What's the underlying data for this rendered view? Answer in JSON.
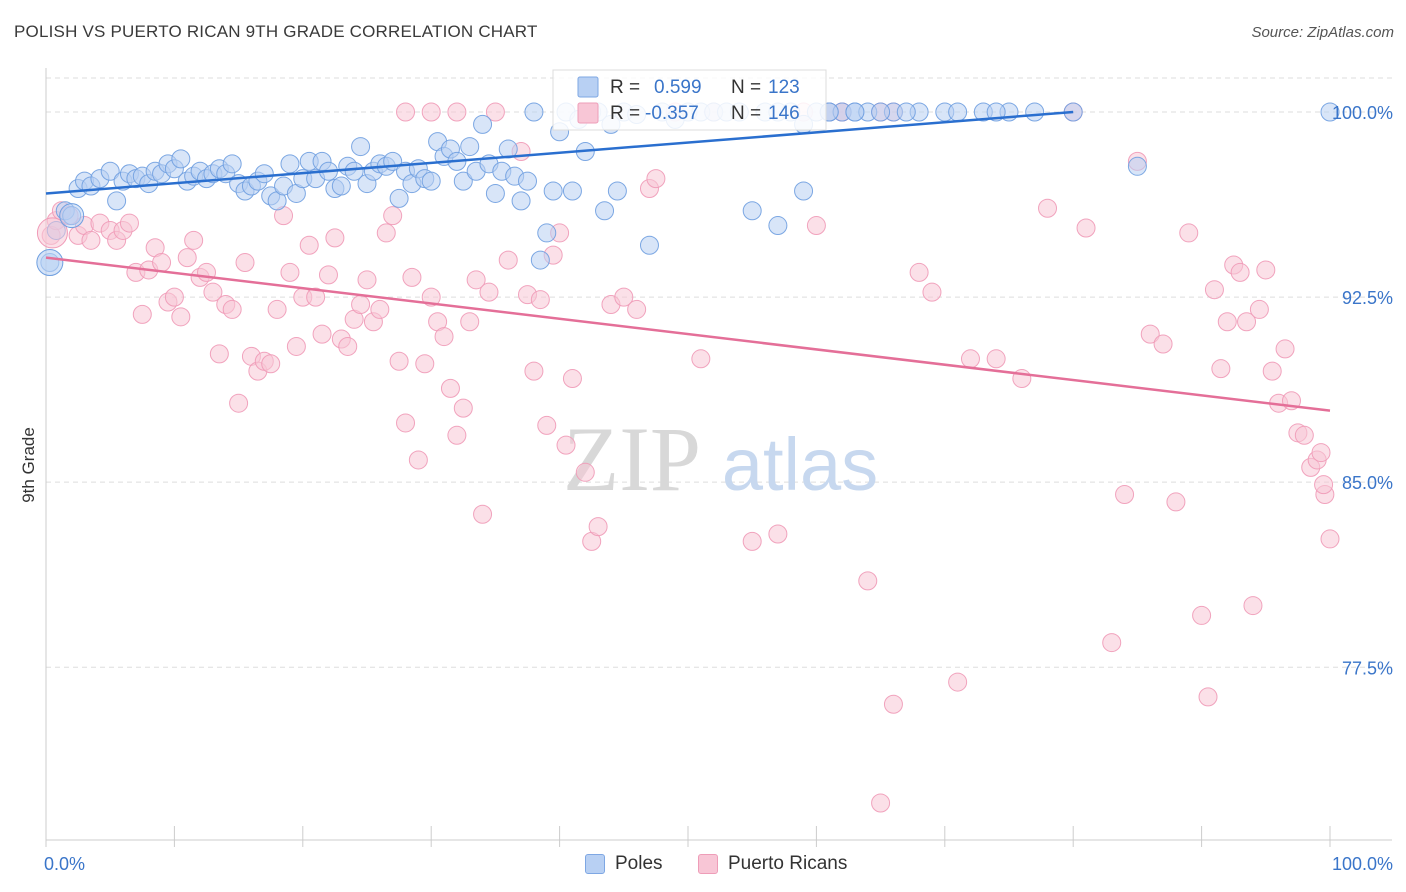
{
  "header": {
    "title": "POLISH VS PUERTO RICAN 9TH GRADE CORRELATION CHART",
    "source": "Source: ZipAtlas.com"
  },
  "watermark": {
    "zip": "ZIP",
    "atlas": "atlas"
  },
  "colors": {
    "blue": "#6f9fe0",
    "blue_line": "#2a6fcf",
    "pink": "#f2a2bd",
    "pink_line": "#e46f98",
    "axis_label": "#3a75c9",
    "grid": "#dddddd"
  },
  "stats_box": {
    "blue": {
      "r_label": "R =",
      "r_value": "0.599",
      "n_label": "N =",
      "n_value": "123"
    },
    "pink": {
      "r_label": "R =",
      "r_value": "-0.357",
      "n_label": "N =",
      "n_value": "146"
    }
  },
  "legend": [
    {
      "label": "Poles"
    },
    {
      "label": "Puerto Ricans"
    }
  ],
  "chart_data": {
    "type": "scatter",
    "title": "POLISH VS PUERTO RICAN 9TH GRADE CORRELATION CHART",
    "xlabel": "",
    "ylabel": "9th Grade",
    "xlim": [
      0,
      100
    ],
    "ylim": [
      70.5,
      101.5
    ],
    "x_tick_labels": [
      "0.0%",
      "100.0%"
    ],
    "y_ticks": [
      {
        "value": 100,
        "label": "100.0%"
      },
      {
        "value": 92.5,
        "label": "92.5%"
      },
      {
        "value": 85,
        "label": "85.0%"
      },
      {
        "value": 77.5,
        "label": "77.5%"
      }
    ],
    "series": [
      {
        "name": "Poles",
        "color": "blue",
        "trend": [
          [
            0,
            96.7
          ],
          [
            80,
            100.0
          ]
        ],
        "points": [
          [
            0.3,
            93.9
          ],
          [
            0.8,
            95.2
          ],
          [
            1.5,
            96.0
          ],
          [
            2,
            95.8
          ],
          [
            2.5,
            96.9
          ],
          [
            3,
            97.2
          ],
          [
            3.5,
            97.0
          ],
          [
            4.2,
            97.3
          ],
          [
            5,
            97.6
          ],
          [
            5.5,
            96.4
          ],
          [
            6,
            97.2
          ],
          [
            6.5,
            97.5
          ],
          [
            7,
            97.3
          ],
          [
            7.5,
            97.4
          ],
          [
            8,
            97.1
          ],
          [
            8.5,
            97.6
          ],
          [
            9,
            97.5
          ],
          [
            9.5,
            97.9
          ],
          [
            10,
            97.7
          ],
          [
            10.5,
            98.1
          ],
          [
            11,
            97.2
          ],
          [
            11.5,
            97.4
          ],
          [
            12,
            97.6
          ],
          [
            12.5,
            97.3
          ],
          [
            13,
            97.5
          ],
          [
            13.5,
            97.7
          ],
          [
            14,
            97.5
          ],
          [
            14.5,
            97.9
          ],
          [
            15,
            97.1
          ],
          [
            15.5,
            96.8
          ],
          [
            16,
            97.0
          ],
          [
            16.5,
            97.2
          ],
          [
            17,
            97.5
          ],
          [
            17.5,
            96.6
          ],
          [
            18,
            96.4
          ],
          [
            18.5,
            97.0
          ],
          [
            19,
            97.9
          ],
          [
            19.5,
            96.7
          ],
          [
            20,
            97.3
          ],
          [
            20.5,
            98.0
          ],
          [
            21,
            97.3
          ],
          [
            21.5,
            98.0
          ],
          [
            22,
            97.6
          ],
          [
            22.5,
            96.9
          ],
          [
            23,
            97.0
          ],
          [
            23.5,
            97.8
          ],
          [
            24,
            97.6
          ],
          [
            24.5,
            98.6
          ],
          [
            25,
            97.1
          ],
          [
            25.5,
            97.6
          ],
          [
            26,
            97.9
          ],
          [
            26.5,
            97.8
          ],
          [
            27,
            98.0
          ],
          [
            27.5,
            96.5
          ],
          [
            28,
            97.6
          ],
          [
            28.5,
            97.1
          ],
          [
            29,
            97.7
          ],
          [
            29.5,
            97.3
          ],
          [
            30,
            97.2
          ],
          [
            30.5,
            98.8
          ],
          [
            31,
            98.2
          ],
          [
            31.5,
            98.5
          ],
          [
            32,
            98.0
          ],
          [
            32.5,
            97.2
          ],
          [
            33,
            98.6
          ],
          [
            33.5,
            97.6
          ],
          [
            34,
            99.5
          ],
          [
            34.5,
            97.9
          ],
          [
            35,
            96.7
          ],
          [
            35.5,
            97.6
          ],
          [
            36,
            98.5
          ],
          [
            36.5,
            97.4
          ],
          [
            37,
            96.4
          ],
          [
            37.5,
            97.2
          ],
          [
            38,
            100.0
          ],
          [
            38.5,
            94.0
          ],
          [
            39,
            95.1
          ],
          [
            39.5,
            96.8
          ],
          [
            40,
            99.2
          ],
          [
            40.5,
            100.0
          ],
          [
            41,
            96.8
          ],
          [
            41.5,
            99.7
          ],
          [
            42,
            98.4
          ],
          [
            42.5,
            100.0
          ],
          [
            43,
            100.0
          ],
          [
            43.5,
            96.0
          ],
          [
            44,
            99.5
          ],
          [
            44.5,
            96.8
          ],
          [
            45,
            100.0
          ],
          [
            46,
            99.9
          ],
          [
            47,
            94.6
          ],
          [
            48,
            100.0
          ],
          [
            49,
            99.7
          ],
          [
            50,
            100.0
          ],
          [
            51,
            100.0
          ],
          [
            52,
            100.0
          ],
          [
            53,
            100.0
          ],
          [
            54,
            100.0
          ],
          [
            55,
            96.0
          ],
          [
            56,
            100.0
          ],
          [
            57,
            100.0
          ],
          [
            58,
            100.0
          ],
          [
            59,
            99.5
          ],
          [
            60,
            100.0
          ],
          [
            61,
            100.0
          ],
          [
            62,
            100.0
          ],
          [
            63,
            100.0
          ],
          [
            64,
            100.0
          ],
          [
            66,
            100.0
          ],
          [
            68,
            100.0
          ],
          [
            70,
            100.0
          ],
          [
            73,
            100.0
          ],
          [
            75,
            100.0
          ],
          [
            80,
            100.0
          ],
          [
            85,
            97.8
          ],
          [
            59,
            96.8
          ],
          [
            57,
            95.4
          ],
          [
            61,
            100.0
          ],
          [
            63,
            100.0
          ],
          [
            65,
            100.0
          ],
          [
            67,
            100.0
          ],
          [
            71,
            100.0
          ],
          [
            74,
            100.0
          ],
          [
            77,
            100.0
          ],
          [
            100,
            100.0
          ]
        ]
      },
      {
        "name": "Puerto Ricans",
        "color": "pink",
        "trend": [
          [
            0,
            94.1
          ],
          [
            100,
            87.9
          ]
        ],
        "points": [
          [
            0.4,
            95.0
          ],
          [
            0.8,
            95.6
          ],
          [
            1.2,
            96.0
          ],
          [
            1.8,
            95.8
          ],
          [
            2.5,
            95.0
          ],
          [
            3,
            95.4
          ],
          [
            3.5,
            94.8
          ],
          [
            4.2,
            95.5
          ],
          [
            5,
            95.2
          ],
          [
            5.5,
            94.8
          ],
          [
            6,
            95.2
          ],
          [
            6.5,
            95.5
          ],
          [
            7,
            93.5
          ],
          [
            7.5,
            91.8
          ],
          [
            8,
            93.6
          ],
          [
            8.5,
            94.5
          ],
          [
            9,
            93.9
          ],
          [
            9.5,
            92.3
          ],
          [
            10,
            92.5
          ],
          [
            10.5,
            91.7
          ],
          [
            11,
            94.1
          ],
          [
            11.5,
            94.8
          ],
          [
            12,
            93.3
          ],
          [
            12.5,
            93.5
          ],
          [
            13,
            92.7
          ],
          [
            13.5,
            90.2
          ],
          [
            14,
            92.2
          ],
          [
            14.5,
            92.0
          ],
          [
            15,
            88.2
          ],
          [
            15.5,
            93.9
          ],
          [
            16,
            90.1
          ],
          [
            16.5,
            89.5
          ],
          [
            17,
            89.9
          ],
          [
            17.5,
            89.8
          ],
          [
            18,
            92.0
          ],
          [
            18.5,
            95.8
          ],
          [
            19,
            93.5
          ],
          [
            19.5,
            90.5
          ],
          [
            20,
            92.5
          ],
          [
            20.5,
            94.6
          ],
          [
            21,
            92.5
          ],
          [
            21.5,
            91.0
          ],
          [
            22,
            93.4
          ],
          [
            22.5,
            94.9
          ],
          [
            23,
            90.8
          ],
          [
            23.5,
            90.5
          ],
          [
            24,
            91.6
          ],
          [
            24.5,
            92.2
          ],
          [
            25,
            93.2
          ],
          [
            25.5,
            91.5
          ],
          [
            26,
            92.0
          ],
          [
            26.5,
            95.1
          ],
          [
            27,
            95.8
          ],
          [
            27.5,
            89.9
          ],
          [
            28,
            87.4
          ],
          [
            28.5,
            93.3
          ],
          [
            29,
            85.9
          ],
          [
            29.5,
            89.8
          ],
          [
            30,
            92.5
          ],
          [
            30.5,
            91.5
          ],
          [
            31,
            90.9
          ],
          [
            31.5,
            88.8
          ],
          [
            32,
            86.9
          ],
          [
            32.5,
            88.0
          ],
          [
            33,
            91.5
          ],
          [
            33.5,
            93.2
          ],
          [
            34,
            83.7
          ],
          [
            34.5,
            92.7
          ],
          [
            35,
            100.0
          ],
          [
            36,
            94.0
          ],
          [
            37,
            98.4
          ],
          [
            37.5,
            92.6
          ],
          [
            38,
            89.5
          ],
          [
            38.5,
            92.4
          ],
          [
            39,
            87.3
          ],
          [
            39.5,
            94.2
          ],
          [
            40,
            95.1
          ],
          [
            40.5,
            86.5
          ],
          [
            41,
            89.2
          ],
          [
            42,
            85.4
          ],
          [
            42.5,
            82.6
          ],
          [
            43,
            83.2
          ],
          [
            44,
            92.2
          ],
          [
            45,
            92.5
          ],
          [
            46,
            92.0
          ],
          [
            47,
            96.9
          ],
          [
            47.5,
            97.3
          ],
          [
            49,
            100.0
          ],
          [
            51,
            90.0
          ],
          [
            52,
            100.0
          ],
          [
            55,
            82.6
          ],
          [
            57,
            82.9
          ],
          [
            59,
            100.0
          ],
          [
            60,
            95.4
          ],
          [
            61,
            100.0
          ],
          [
            62,
            100.0
          ],
          [
            64,
            81.0
          ],
          [
            65,
            100.0
          ],
          [
            66,
            76.0
          ],
          [
            68,
            93.5
          ],
          [
            69,
            92.7
          ],
          [
            71,
            76.9
          ],
          [
            72,
            90.0
          ],
          [
            74,
            90.0
          ],
          [
            76,
            89.2
          ],
          [
            78,
            96.1
          ],
          [
            81,
            95.3
          ],
          [
            83,
            78.5
          ],
          [
            84,
            84.5
          ],
          [
            85,
            98.0
          ],
          [
            86,
            91.0
          ],
          [
            87,
            90.6
          ],
          [
            88,
            84.2
          ],
          [
            89,
            95.1
          ],
          [
            90,
            79.6
          ],
          [
            90.5,
            76.3
          ],
          [
            91,
            92.8
          ],
          [
            91.5,
            89.6
          ],
          [
            92,
            91.5
          ],
          [
            92.5,
            93.8
          ],
          [
            93,
            93.5
          ],
          [
            93.5,
            91.5
          ],
          [
            94,
            80.0
          ],
          [
            94.5,
            92.0
          ],
          [
            95,
            93.6
          ],
          [
            95.5,
            89.5
          ],
          [
            96,
            88.2
          ],
          [
            96.5,
            90.4
          ],
          [
            97,
            88.3
          ],
          [
            97.5,
            87.0
          ],
          [
            98,
            86.9
          ],
          [
            98.5,
            85.6
          ],
          [
            99,
            85.9
          ],
          [
            99.3,
            86.2
          ],
          [
            99.6,
            84.5
          ],
          [
            100,
            82.7
          ],
          [
            99.5,
            84.9
          ],
          [
            80,
            100.0
          ],
          [
            66,
            100.0
          ],
          [
            62,
            100.0
          ],
          [
            65,
            72.0
          ],
          [
            28,
            100.0
          ],
          [
            30,
            100.0
          ],
          [
            32,
            100.0
          ]
        ]
      }
    ]
  }
}
